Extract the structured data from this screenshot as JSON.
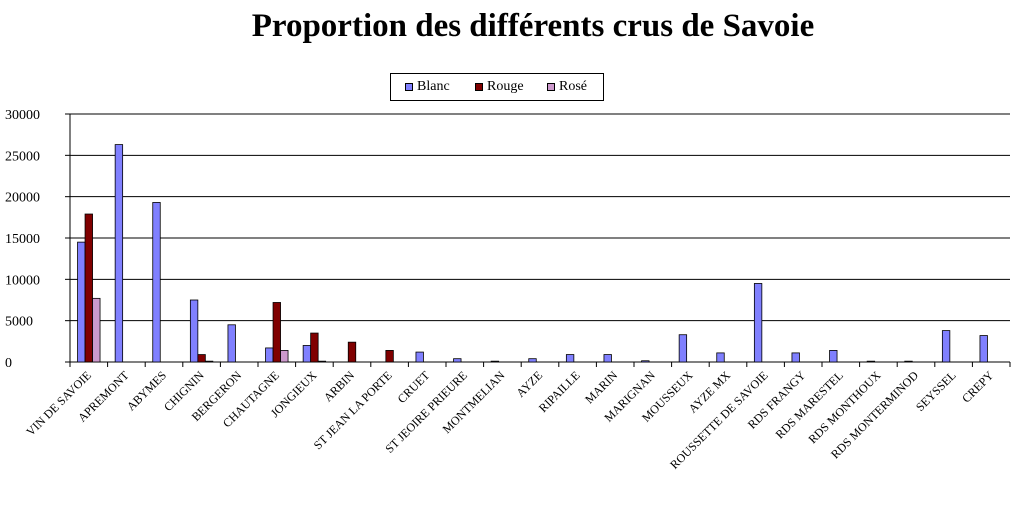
{
  "chart_data": {
    "type": "bar",
    "title": "Proportion des différents crus de Savoie",
    "xlabel": "",
    "ylabel": "",
    "ylim": [
      0,
      30000
    ],
    "yticks": [
      0,
      5000,
      10000,
      15000,
      20000,
      25000,
      30000
    ],
    "grid": true,
    "legend_position": "top-center",
    "categories": [
      "VIN DE SAVOIE",
      "APREMONT",
      "ABYMES",
      "CHIGNIN",
      "BERGERON",
      "CHAUTAGNE",
      "JONGIEUX",
      "ARBIN",
      "ST JEAN LA PORTE",
      "CRUET",
      "ST JEOIRE PRIEURE",
      "MONTMELIAN",
      "AYZE",
      "RIPAILLE",
      "MARIN",
      "MARIGNAN",
      "MOUSSEUX",
      "AYZE MX",
      "ROUSSETTE DE SAVOIE",
      "RDS FRANGY",
      "RDS MARESTEL",
      "RDS MONTHOUX",
      "RDS MONTERMINOD",
      "SEYSSEL",
      "CREPY"
    ],
    "series": [
      {
        "name": "Blanc",
        "color": "#8080ff",
        "values": [
          14500,
          26300,
          19300,
          7500,
          4500,
          1700,
          2000,
          0,
          0,
          1200,
          400,
          100,
          400,
          900,
          900,
          150,
          3300,
          1100,
          9500,
          1100,
          1400,
          100,
          100,
          3800,
          3200
        ]
      },
      {
        "name": "Rouge",
        "color": "#800000",
        "values": [
          17900,
          0,
          0,
          900,
          0,
          7200,
          3500,
          2400,
          1400,
          0,
          0,
          0,
          0,
          0,
          0,
          0,
          0,
          0,
          0,
          0,
          0,
          0,
          0,
          0,
          0
        ]
      },
      {
        "name": "Rosé",
        "color": "#cc99cc",
        "values": [
          7700,
          0,
          0,
          100,
          0,
          1400,
          100,
          0,
          0,
          0,
          0,
          0,
          0,
          0,
          0,
          0,
          0,
          0,
          0,
          0,
          0,
          0,
          0,
          0,
          0
        ]
      }
    ]
  }
}
